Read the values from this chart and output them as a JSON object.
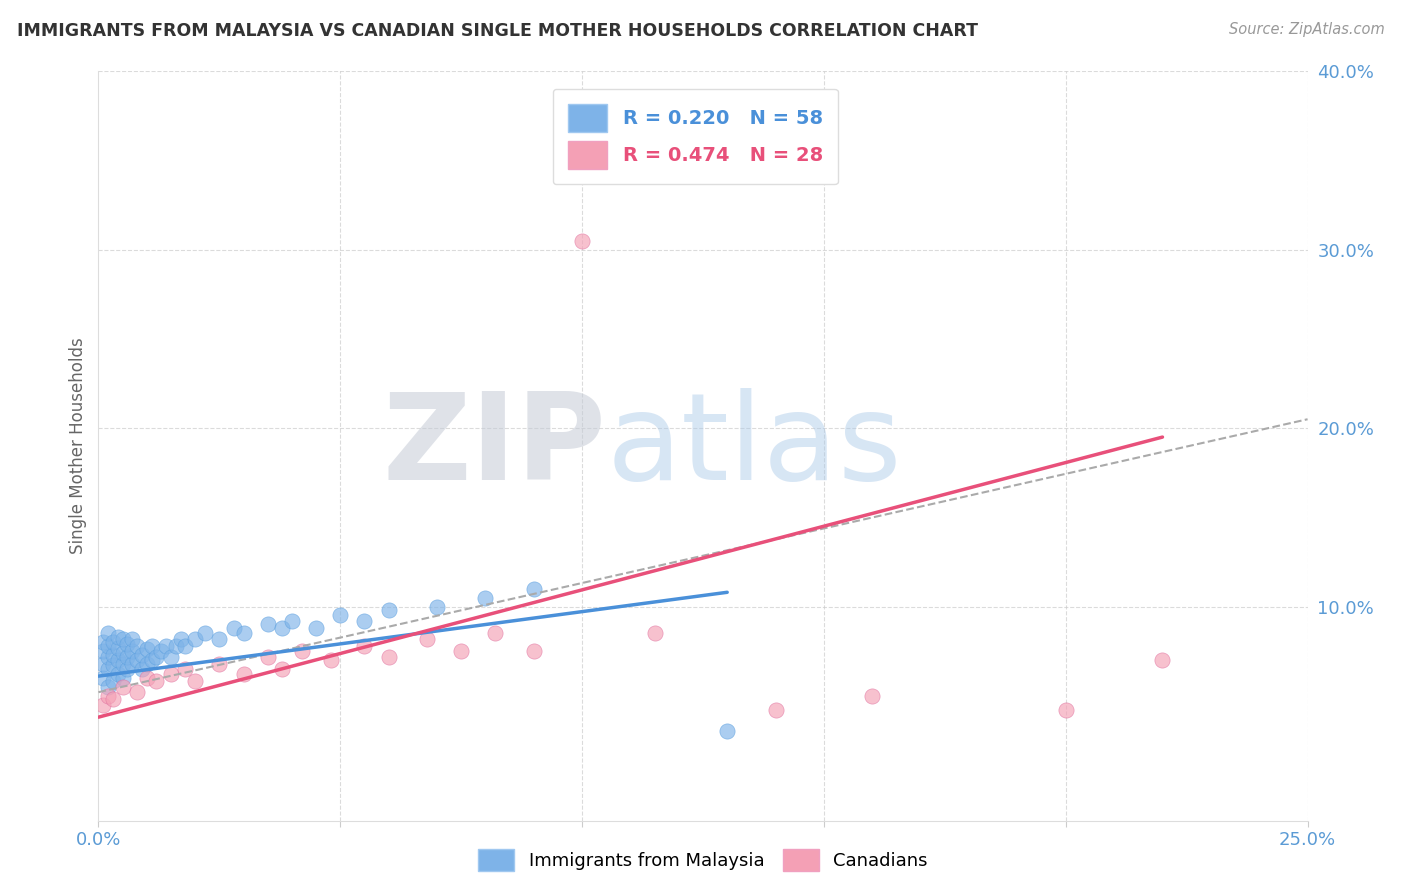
{
  "title": "IMMIGRANTS FROM MALAYSIA VS CANADIAN SINGLE MOTHER HOUSEHOLDS CORRELATION CHART",
  "source_text": "Source: ZipAtlas.com",
  "ylabel": "Single Mother Households",
  "xlim": [
    0.0,
    0.25
  ],
  "ylim": [
    -0.02,
    0.4
  ],
  "xticks": [
    0.0,
    0.05,
    0.1,
    0.15,
    0.2,
    0.25
  ],
  "xtick_labels": [
    "0.0%",
    "",
    "",
    "",
    "",
    "25.0%"
  ],
  "yticks_right": [
    0.1,
    0.2,
    0.3,
    0.4
  ],
  "ytick_labels_right": [
    "10.0%",
    "20.0%",
    "30.0%",
    "40.0%"
  ],
  "blue_color": "#7EB3E8",
  "pink_color": "#F4A0B5",
  "blue_line_color": "#4A90D9",
  "pink_line_color": "#E8507A",
  "legend_blue_label": "R = 0.220   N = 58",
  "legend_pink_label": "R = 0.474   N = 28",
  "watermark_zip": "ZIP",
  "watermark_atlas": "atlas",
  "watermark_color_zip": "#C8D0DC",
  "watermark_color_atlas": "#A8C4E0",
  "grid_color": "#CCCCCC",
  "title_color": "#333333",
  "axis_label_color": "#5B9BD5",
  "blue_scatter_x": [
    0.001,
    0.001,
    0.001,
    0.001,
    0.002,
    0.002,
    0.002,
    0.002,
    0.002,
    0.003,
    0.003,
    0.003,
    0.003,
    0.004,
    0.004,
    0.004,
    0.004,
    0.005,
    0.005,
    0.005,
    0.005,
    0.006,
    0.006,
    0.006,
    0.007,
    0.007,
    0.007,
    0.008,
    0.008,
    0.009,
    0.009,
    0.01,
    0.01,
    0.011,
    0.011,
    0.012,
    0.013,
    0.014,
    0.015,
    0.016,
    0.017,
    0.018,
    0.02,
    0.022,
    0.025,
    0.028,
    0.03,
    0.035,
    0.038,
    0.04,
    0.045,
    0.05,
    0.055,
    0.06,
    0.07,
    0.08,
    0.09,
    0.13
  ],
  "blue_scatter_y": [
    0.06,
    0.068,
    0.075,
    0.08,
    0.055,
    0.065,
    0.072,
    0.078,
    0.085,
    0.058,
    0.067,
    0.073,
    0.08,
    0.062,
    0.07,
    0.077,
    0.083,
    0.06,
    0.068,
    0.074,
    0.082,
    0.065,
    0.072,
    0.079,
    0.068,
    0.075,
    0.082,
    0.07,
    0.078,
    0.065,
    0.073,
    0.068,
    0.076,
    0.07,
    0.078,
    0.072,
    0.075,
    0.078,
    0.072,
    0.078,
    0.082,
    0.078,
    0.082,
    0.085,
    0.082,
    0.088,
    0.085,
    0.09,
    0.088,
    0.092,
    0.088,
    0.095,
    0.092,
    0.098,
    0.1,
    0.105,
    0.11,
    0.03
  ],
  "pink_scatter_x": [
    0.001,
    0.002,
    0.003,
    0.005,
    0.008,
    0.01,
    0.012,
    0.015,
    0.018,
    0.02,
    0.025,
    0.03,
    0.035,
    0.038,
    0.042,
    0.048,
    0.055,
    0.06,
    0.068,
    0.075,
    0.082,
    0.09,
    0.1,
    0.115,
    0.14,
    0.16,
    0.2,
    0.22
  ],
  "pink_scatter_y": [
    0.045,
    0.05,
    0.048,
    0.055,
    0.052,
    0.06,
    0.058,
    0.062,
    0.065,
    0.058,
    0.068,
    0.062,
    0.072,
    0.065,
    0.075,
    0.07,
    0.078,
    0.072,
    0.082,
    0.075,
    0.085,
    0.075,
    0.305,
    0.085,
    0.042,
    0.05,
    0.042,
    0.07
  ],
  "background_color": "#FFFFFF"
}
